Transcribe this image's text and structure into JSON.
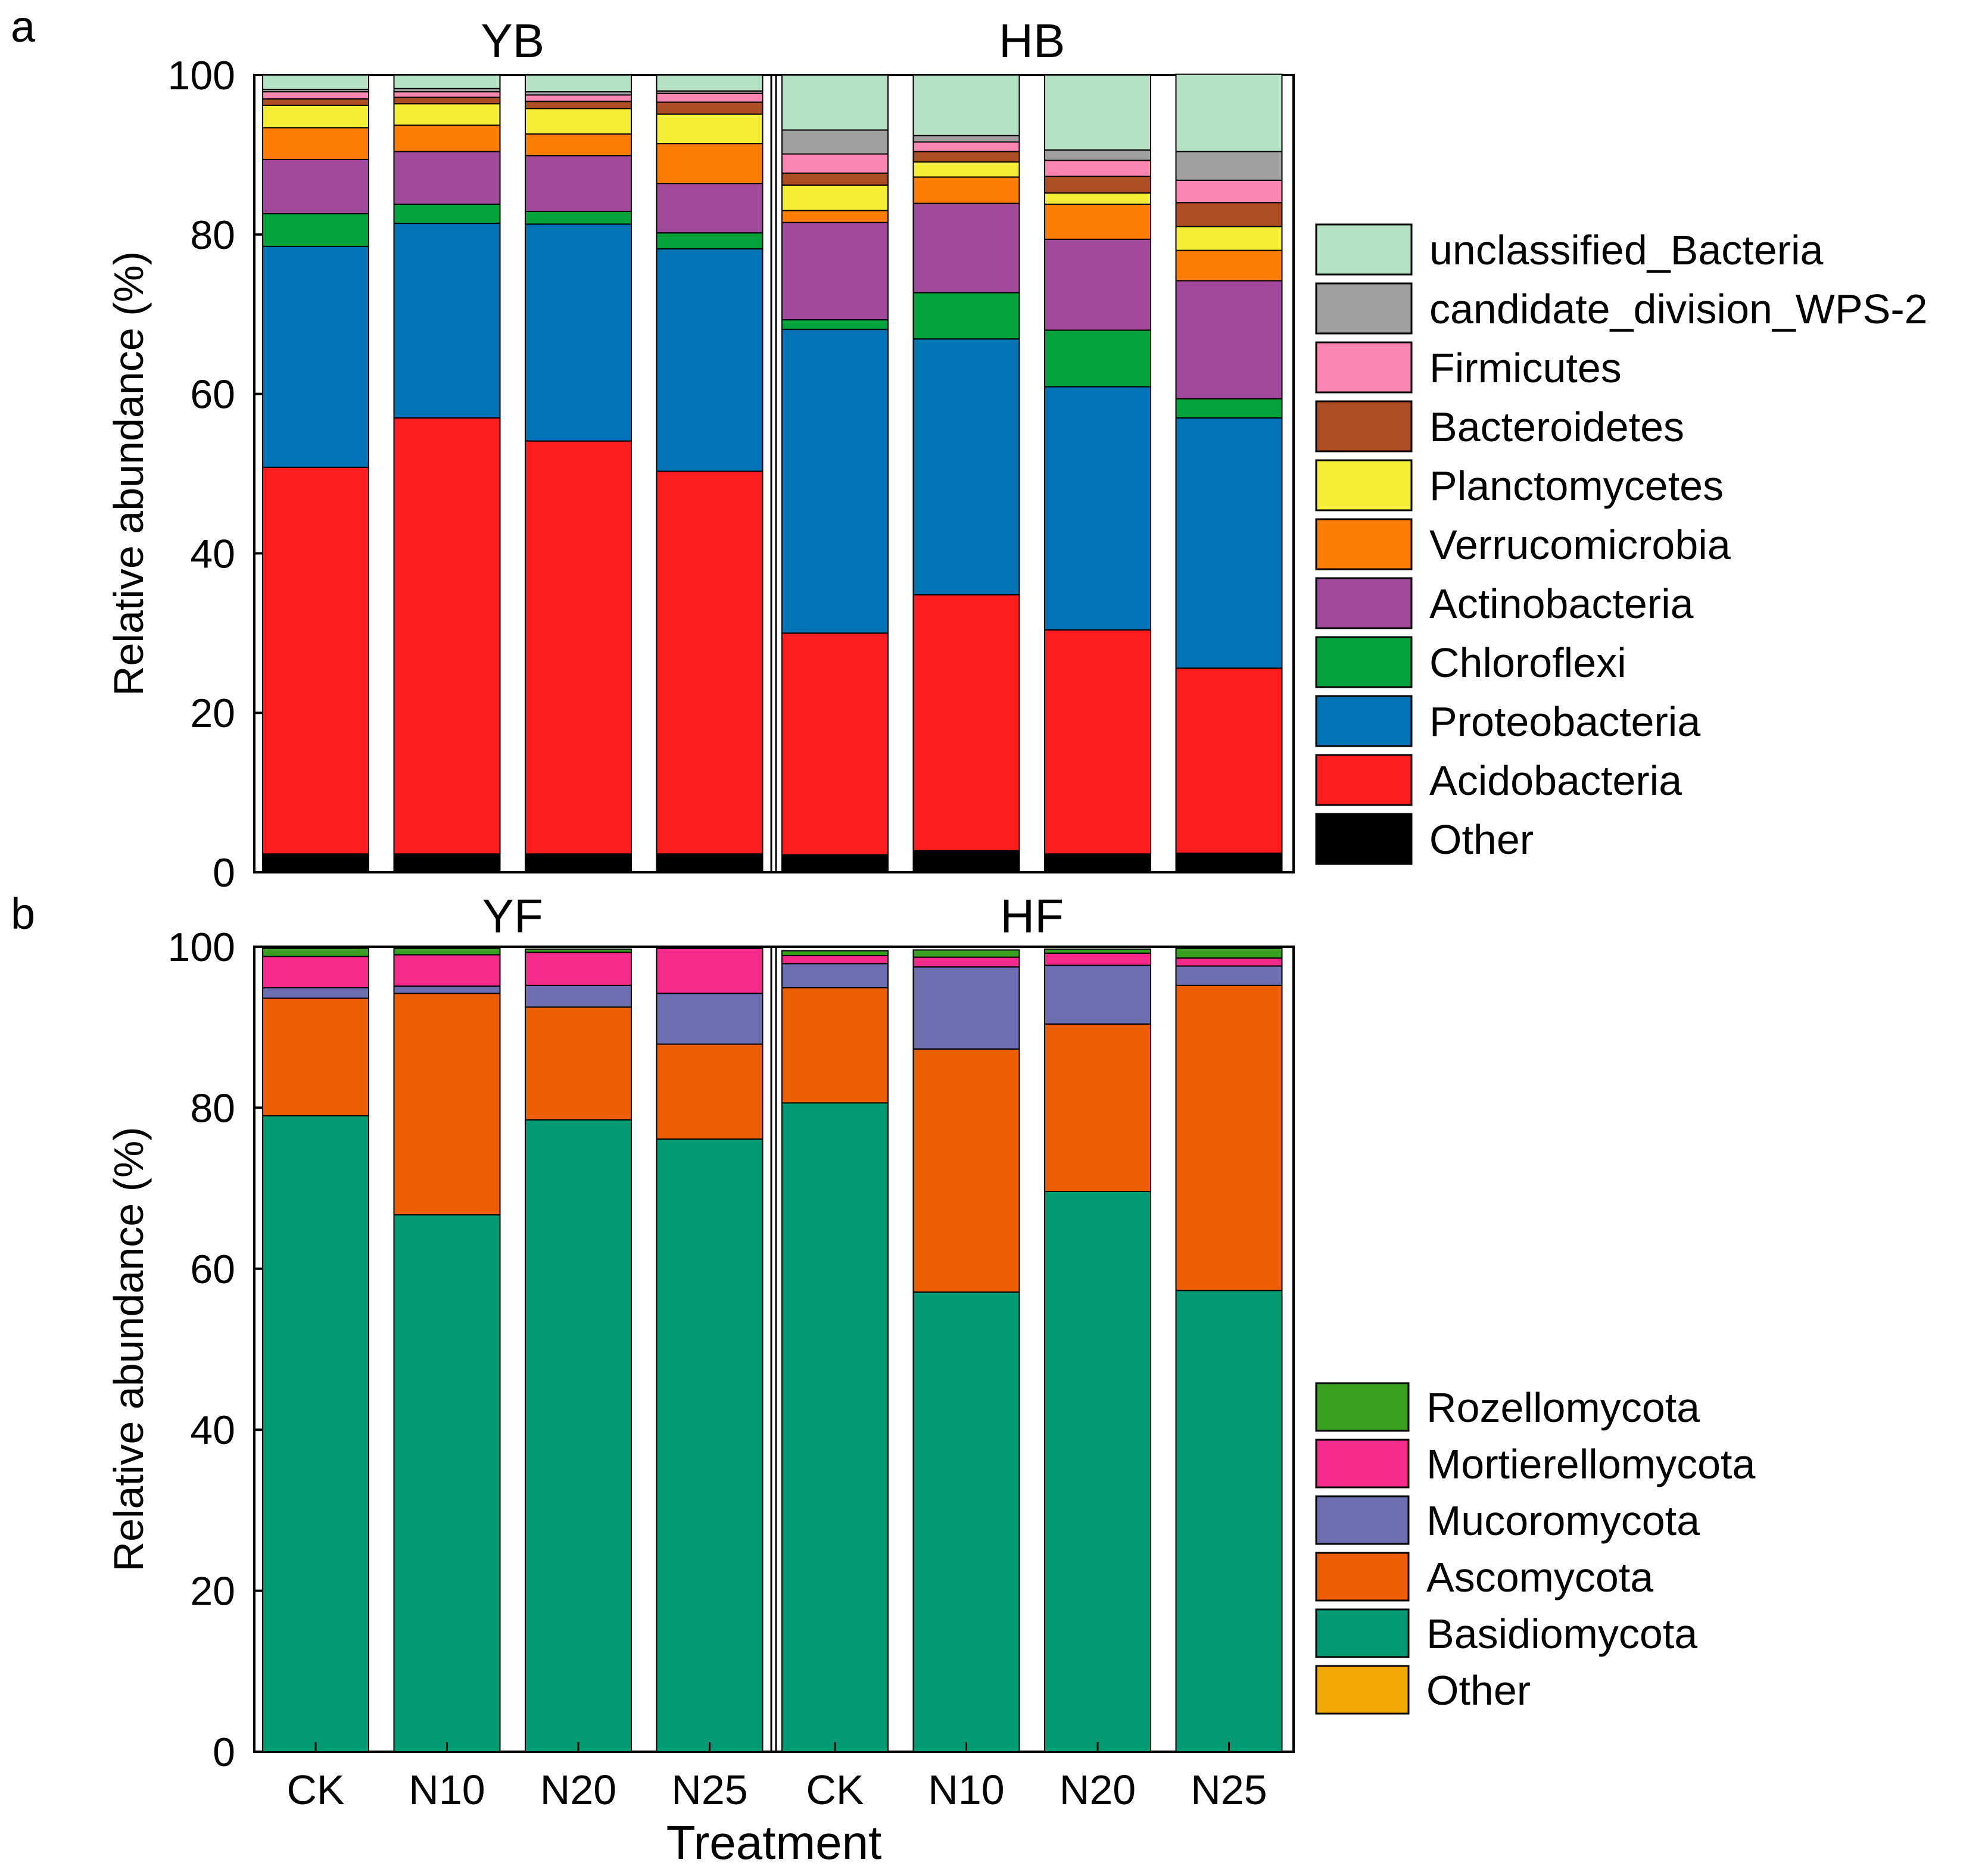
{
  "panel_letters": [
    "a",
    "b"
  ],
  "chart_data": [
    {
      "type": "bar",
      "stacked": true,
      "panel": "a",
      "ylabel": "Relative abundance (%)",
      "xlabel": "",
      "ylim": [
        0,
        100
      ],
      "yticks": [
        0,
        20,
        40,
        60,
        80,
        100
      ],
      "groups": [
        {
          "name": "YB",
          "categories": [
            "CK",
            "N10",
            "N20",
            "N25"
          ]
        },
        {
          "name": "HB",
          "categories": [
            "CK",
            "N10",
            "N20",
            "N25"
          ]
        }
      ],
      "legend_position": "right",
      "series": [
        {
          "name": "Other",
          "color": "#000000",
          "values": [
            2.3,
            2.3,
            2.3,
            2.3,
            2.2,
            2.7,
            2.3,
            2.4
          ]
        },
        {
          "name": "Acidobacteria",
          "color": "#fc1d1e",
          "values": [
            48.5,
            54.7,
            51.8,
            48.0,
            27.8,
            32.1,
            28.1,
            23.2
          ]
        },
        {
          "name": "Proteobacteria",
          "color": "#0273b4",
          "values": [
            27.7,
            24.4,
            27.2,
            27.9,
            38.1,
            32.1,
            30.5,
            31.4
          ]
        },
        {
          "name": "Chloroflexi",
          "color": "#03a23a",
          "values": [
            4.1,
            2.4,
            1.6,
            2.0,
            1.2,
            5.8,
            7.1,
            2.4
          ]
        },
        {
          "name": "Actinobacteria",
          "color": "#a14a9b",
          "values": [
            6.8,
            6.6,
            7.0,
            6.2,
            12.2,
            11.2,
            11.4,
            14.8
          ]
        },
        {
          "name": "Verrucomicrobia",
          "color": "#fd7d03",
          "values": [
            4.0,
            3.3,
            2.7,
            5.0,
            1.5,
            3.3,
            4.4,
            3.8
          ]
        },
        {
          "name": "Planctomycetes",
          "color": "#f5ee37",
          "values": [
            2.8,
            2.7,
            3.2,
            3.7,
            3.2,
            1.9,
            1.4,
            3.0
          ]
        },
        {
          "name": "Bacteroidetes",
          "color": "#ad4d23",
          "values": [
            0.8,
            0.8,
            0.9,
            1.5,
            1.5,
            1.3,
            2.1,
            3.0
          ]
        },
        {
          "name": "Firmicutes",
          "color": "#fc86b2",
          "values": [
            0.9,
            0.7,
            0.8,
            1.1,
            2.4,
            1.2,
            2.0,
            2.8
          ]
        },
        {
          "name": "candidate_division_WPS-2",
          "color": "#a0a0a0",
          "values": [
            0.3,
            0.4,
            0.4,
            0.3,
            3.0,
            0.8,
            1.3,
            3.6
          ]
        },
        {
          "name": "unclassified_Bacteria",
          "color": "#b5e2c5",
          "values": [
            1.8,
            1.7,
            2.1,
            2.0,
            6.9,
            7.6,
            9.4,
            9.7
          ]
        }
      ]
    },
    {
      "type": "bar",
      "stacked": true,
      "panel": "b",
      "ylabel": "Relative abundance (%)",
      "xlabel": "Treatment",
      "ylim": [
        0,
        100
      ],
      "yticks": [
        0,
        20,
        40,
        60,
        80,
        100
      ],
      "groups": [
        {
          "name": "YF",
          "categories": [
            "CK",
            "N10",
            "N20",
            "N25"
          ]
        },
        {
          "name": "HF",
          "categories": [
            "CK",
            "N10",
            "N20",
            "N25"
          ]
        }
      ],
      "legend_position": "right",
      "series": [
        {
          "name": "Other",
          "color": "#f1a904",
          "values": [
            0.0,
            0.0,
            0.0,
            0.0,
            0.0,
            0.0,
            0.0,
            0.0
          ]
        },
        {
          "name": "Basidiomycota",
          "color": "#019a73",
          "values": [
            79.0,
            66.7,
            78.5,
            76.1,
            80.6,
            57.1,
            69.6,
            57.3
          ]
        },
        {
          "name": "Ascomycota",
          "color": "#ed5f02",
          "values": [
            14.6,
            27.5,
            14.0,
            11.8,
            14.3,
            30.2,
            20.8,
            37.9
          ]
        },
        {
          "name": "Mucoromycota",
          "color": "#6d6eaf",
          "values": [
            1.3,
            0.9,
            2.7,
            6.3,
            3.0,
            10.2,
            7.3,
            2.4
          ]
        },
        {
          "name": "Mortierellomycota",
          "color": "#f52b8c",
          "values": [
            3.9,
            3.9,
            4.1,
            5.6,
            1.0,
            1.2,
            1.5,
            1.0
          ]
        },
        {
          "name": "Rozellomycota",
          "color": "#37a020",
          "values": [
            1.0,
            0.8,
            0.4,
            0.1,
            0.6,
            0.9,
            0.5,
            1.2
          ]
        }
      ]
    }
  ]
}
